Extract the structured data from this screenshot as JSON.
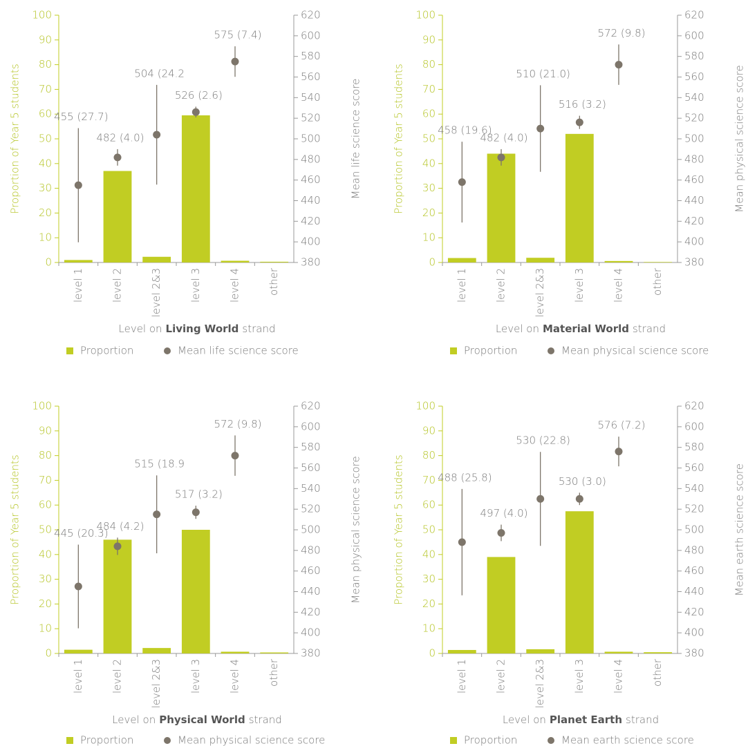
{
  "chart_data": [
    {
      "type": "bar",
      "categories": [
        "level 1",
        "level 2",
        "level 2&3",
        "level 3",
        "level 4",
        "other"
      ],
      "xlabel": [
        "Level on",
        "Living World",
        "strand"
      ],
      "ylabel": "Proportion of Year 5 students",
      "y2label": "Mean life science score",
      "ylim": [
        0,
        100
      ],
      "yticks": [
        0,
        10,
        20,
        30,
        40,
        50,
        60,
        70,
        80,
        90,
        100
      ],
      "y2lim": [
        380,
        620
      ],
      "y2ticks": [
        380,
        400,
        420,
        440,
        460,
        480,
        500,
        520,
        540,
        560,
        580,
        600,
        620
      ],
      "series": [
        {
          "name": "Proportion",
          "color": "#c1cd23",
          "values": [
            1,
            37,
            2.3,
            59.5,
            0.7,
            0.3
          ]
        },
        {
          "name": "Mean life science score",
          "type": "scatter",
          "axis": "y2",
          "color": "#7d756a",
          "values": [
            455,
            482,
            504,
            526,
            575,
            null
          ],
          "errors": [
            55.4,
            8,
            48.4,
            5.2,
            14.8,
            null
          ],
          "value_labels": [
            "455 (27.7)",
            "482 (4.0)",
            "504 (24.2",
            "526 (2.6)",
            "575 (7.4)",
            null
          ]
        }
      ]
    },
    {
      "type": "bar",
      "categories": [
        "level 1",
        "level 2",
        "level 2&3",
        "level 3",
        "level 4",
        "other"
      ],
      "xlabel": [
        "Level on",
        "Material World",
        "strand"
      ],
      "ylabel": "Proportion of Year 5 students",
      "y2label": "Mean physical science score",
      "ylim": [
        0,
        100
      ],
      "yticks": [
        0,
        10,
        20,
        30,
        40,
        50,
        60,
        70,
        80,
        90,
        100
      ],
      "y2lim": [
        380,
        620
      ],
      "y2ticks": [
        380,
        400,
        420,
        440,
        460,
        480,
        500,
        520,
        540,
        560,
        580,
        600,
        620
      ],
      "series": [
        {
          "name": "Proportion",
          "color": "#c1cd23",
          "values": [
            1.8,
            44,
            1.9,
            52,
            0.6,
            0.2
          ]
        },
        {
          "name": "Mean physical science score",
          "type": "scatter",
          "axis": "y2",
          "color": "#7d756a",
          "values": [
            458,
            482,
            510,
            516,
            572,
            null
          ],
          "errors": [
            39.2,
            8,
            42,
            6.4,
            19.6,
            null
          ],
          "value_labels": [
            "458 (19.6)",
            "482 (4.0)",
            "510 (21.0)",
            "516 (3.2)",
            "572 (9.8)",
            null
          ]
        }
      ]
    },
    {
      "type": "bar",
      "categories": [
        "level 1",
        "level 2",
        "level 2&3",
        "level 3",
        "level 4",
        "other"
      ],
      "xlabel": [
        "Level on",
        "Physical World",
        "strand"
      ],
      "ylabel": "Proportion of Year 5 students",
      "y2label": "Mean physical science score",
      "ylim": [
        0,
        100
      ],
      "yticks": [
        0,
        10,
        20,
        30,
        40,
        50,
        60,
        70,
        80,
        90,
        100
      ],
      "y2lim": [
        380,
        620
      ],
      "y2ticks": [
        380,
        400,
        420,
        440,
        460,
        480,
        500,
        520,
        540,
        560,
        580,
        600,
        620
      ],
      "series": [
        {
          "name": "Proportion",
          "color": "#c1cd23",
          "values": [
            1.5,
            46,
            2.2,
            50,
            0.7,
            0.4
          ]
        },
        {
          "name": "Mean physical science score",
          "type": "scatter",
          "axis": "y2",
          "color": "#7d756a",
          "values": [
            445,
            484,
            515,
            517,
            572,
            null
          ],
          "errors": [
            40.6,
            8.4,
            37.8,
            6.4,
            19.6,
            null
          ],
          "value_labels": [
            "445 (20.3)",
            "484 (4.2)",
            "515 (18.9",
            "517 (3.2)",
            "572 (9.8)",
            null
          ]
        }
      ]
    },
    {
      "type": "bar",
      "categories": [
        "level 1",
        "level 2",
        "level 2&3",
        "level 3",
        "level 4",
        "other"
      ],
      "xlabel": [
        "Level on",
        "Planet Earth",
        "strand"
      ],
      "ylabel": "Proportion of Year 5 students",
      "y2label": "Mean earth science score",
      "ylim": [
        0,
        100
      ],
      "yticks": [
        0,
        10,
        20,
        30,
        40,
        50,
        60,
        70,
        80,
        90,
        100
      ],
      "y2lim": [
        380,
        620
      ],
      "y2ticks": [
        380,
        400,
        420,
        440,
        460,
        480,
        500,
        520,
        540,
        560,
        580,
        600,
        620
      ],
      "series": [
        {
          "name": "Proportion",
          "color": "#c1cd23",
          "values": [
            1.4,
            39,
            1.7,
            57.5,
            0.7,
            0.5
          ]
        },
        {
          "name": "Mean earth science score",
          "type": "scatter",
          "axis": "y2",
          "color": "#7d756a",
          "values": [
            488,
            497,
            530,
            530,
            576,
            null
          ],
          "errors": [
            51.6,
            8,
            45.6,
            6,
            14.4,
            null
          ],
          "value_labels": [
            "488 (25.8)",
            "497 (4.0)",
            "530 (22.8)",
            "530 (3.0)",
            "576 (7.2)",
            null
          ]
        }
      ]
    }
  ]
}
